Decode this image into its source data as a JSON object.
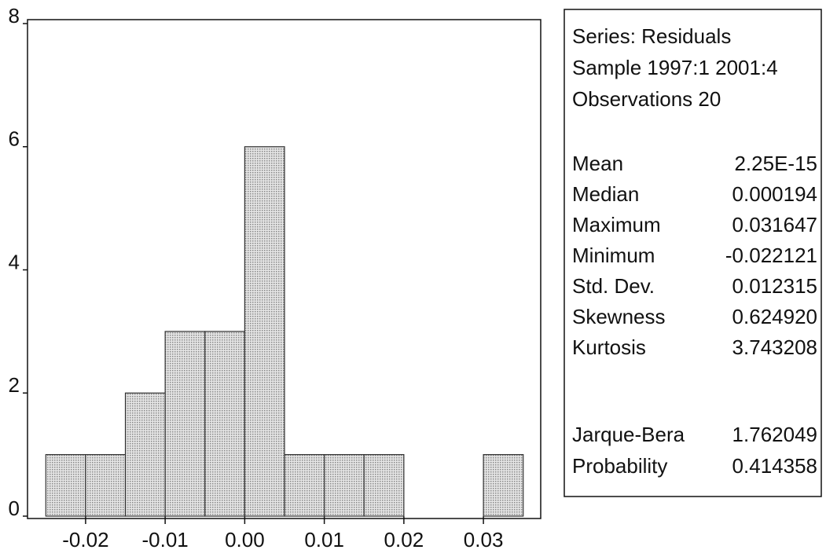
{
  "chart_data": {
    "type": "histogram",
    "bins": [
      -0.025,
      -0.02,
      -0.015,
      -0.01,
      -0.005,
      0,
      0.005,
      0.01,
      0.015,
      0.02,
      0.025,
      0.03,
      0.035
    ],
    "values": [
      1,
      1,
      2,
      3,
      3,
      6,
      1,
      1,
      1,
      0,
      0,
      1
    ],
    "color": "#b8b8b8",
    "xlim": [
      -0.0273,
      0.0372
    ],
    "ylim": [
      0,
      8
    ],
    "xticks": [
      -0.02,
      -0.01,
      {
        "value": 0,
        "label": "0.00"
      },
      0.01,
      0.02,
      0.03
    ],
    "yticks": [
      0,
      2,
      4,
      6,
      8
    ],
    "stats": {
      "header": [
        "Series: Residuals",
        "Sample 1997:1 2001:4",
        "Observations 20"
      ],
      "rows": [
        [
          "Mean",
          "2.25E-15"
        ],
        [
          "Median",
          "0.000194"
        ],
        [
          "Maximum",
          "0.031647"
        ],
        [
          "Minimum",
          "-0.022121"
        ],
        [
          "Std. Dev.",
          "0.012315"
        ],
        [
          "Skewness",
          "0.624920"
        ],
        [
          "Kurtosis",
          "3.743208"
        ]
      ],
      "tests": [
        [
          "Jarque-Bera",
          "1.762049"
        ],
        [
          "Probability",
          "0.414358"
        ]
      ]
    }
  }
}
